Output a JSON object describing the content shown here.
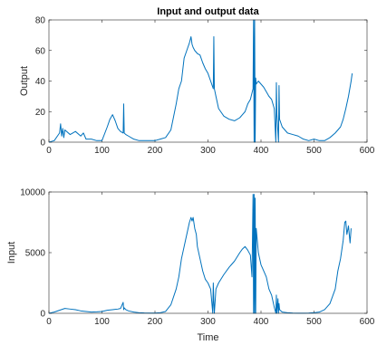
{
  "chart_data": [
    {
      "type": "line",
      "title": "Input and output data",
      "xlabel": "",
      "ylabel": "Output",
      "xlim": [
        0,
        600
      ],
      "ylim": [
        0,
        80
      ],
      "xticks": [
        0,
        100,
        200,
        300,
        400,
        500,
        600
      ],
      "yticks": [
        0,
        20,
        40,
        60,
        80
      ],
      "grid": false,
      "color": "#0072bd",
      "series": [
        {
          "x": [
            0,
            10,
            20,
            22,
            24,
            26,
            28,
            30,
            40,
            50,
            60,
            65,
            70,
            80,
            90,
            100,
            110,
            115,
            120,
            125,
            130,
            135,
            140,
            141,
            142,
            145,
            150,
            160,
            170,
            180,
            190,
            200,
            210,
            220,
            230,
            240,
            245,
            250,
            255,
            260,
            265,
            268,
            270,
            272,
            275,
            280,
            285,
            290,
            295,
            300,
            305,
            310,
            311,
            312,
            315,
            320,
            330,
            340,
            350,
            360,
            370,
            375,
            380,
            385,
            386,
            387,
            388,
            389,
            390,
            391,
            395,
            400,
            405,
            410,
            415,
            420,
            425,
            428,
            429,
            430,
            433,
            434,
            435,
            440,
            450,
            460,
            470,
            480,
            490,
            500,
            510,
            520,
            530,
            540,
            550,
            555,
            560,
            565,
            570,
            572
          ],
          "y": [
            0,
            1,
            6,
            12,
            4,
            9,
            3,
            8,
            5,
            7,
            4,
            6,
            2,
            2,
            1,
            1,
            10,
            15,
            18,
            14,
            9,
            7,
            6,
            25,
            6,
            5,
            4,
            2,
            1,
            1,
            1,
            1,
            2,
            3,
            8,
            25,
            35,
            40,
            55,
            60,
            65,
            69,
            64,
            62,
            60,
            58,
            57,
            52,
            48,
            45,
            40,
            35,
            69,
            35,
            30,
            22,
            17,
            15,
            14,
            16,
            20,
            25,
            28,
            35,
            80,
            0,
            80,
            0,
            42,
            38,
            40,
            38,
            36,
            33,
            30,
            28,
            22,
            0,
            39,
            18,
            0,
            37,
            15,
            10,
            6,
            5,
            4,
            2,
            1,
            2,
            1,
            1,
            3,
            6,
            10,
            15,
            22,
            30,
            40,
            45
          ]
        }
      ]
    },
    {
      "type": "line",
      "title": "",
      "xlabel": "Time",
      "ylabel": "Input",
      "xlim": [
        0,
        600
      ],
      "ylim": [
        0,
        10000
      ],
      "xticks": [
        0,
        100,
        200,
        300,
        400,
        500,
        600
      ],
      "yticks": [
        0,
        5000,
        10000
      ],
      "grid": false,
      "color": "#0072bd",
      "series": [
        {
          "x": [
            0,
            10,
            20,
            30,
            40,
            50,
            60,
            70,
            80,
            90,
            100,
            110,
            120,
            130,
            135,
            140,
            141,
            142,
            145,
            150,
            160,
            170,
            180,
            190,
            200,
            210,
            220,
            230,
            240,
            245,
            250,
            255,
            260,
            265,
            268,
            270,
            272,
            275,
            278,
            280,
            285,
            290,
            295,
            300,
            305,
            309,
            310,
            311,
            312,
            315,
            320,
            330,
            340,
            350,
            360,
            365,
            370,
            375,
            380,
            383,
            385,
            386,
            387,
            388,
            389,
            390,
            391,
            395,
            400,
            405,
            410,
            415,
            420,
            425,
            428,
            429,
            430,
            432,
            433,
            434,
            435,
            440,
            450,
            460,
            470,
            480,
            490,
            500,
            510,
            520,
            530,
            540,
            545,
            550,
            555,
            558,
            560,
            562,
            565,
            568,
            570
          ],
          "y": [
            0,
            100,
            250,
            400,
            350,
            300,
            200,
            150,
            100,
            120,
            150,
            250,
            300,
            350,
            400,
            900,
            300,
            450,
            300,
            200,
            100,
            50,
            30,
            20,
            20,
            50,
            150,
            700,
            2000,
            3000,
            4500,
            5500,
            6500,
            7500,
            7900,
            7600,
            7900,
            7000,
            6500,
            5500,
            4500,
            3500,
            2800,
            2500,
            2000,
            0,
            2500,
            1000,
            0,
            2000,
            2500,
            3200,
            3800,
            4300,
            5000,
            5300,
            5500,
            5200,
            4800,
            3000,
            9800,
            0,
            9800,
            0,
            9500,
            0,
            7000,
            5000,
            4000,
            3500,
            3000,
            2000,
            1500,
            500,
            0,
            1500,
            0,
            1200,
            0,
            800,
            300,
            100,
            50,
            20,
            10,
            10,
            20,
            50,
            100,
            300,
            800,
            2000,
            3500,
            4500,
            6000,
            7500,
            7600,
            6500,
            7200,
            5800,
            7000
          ]
        }
      ]
    }
  ]
}
